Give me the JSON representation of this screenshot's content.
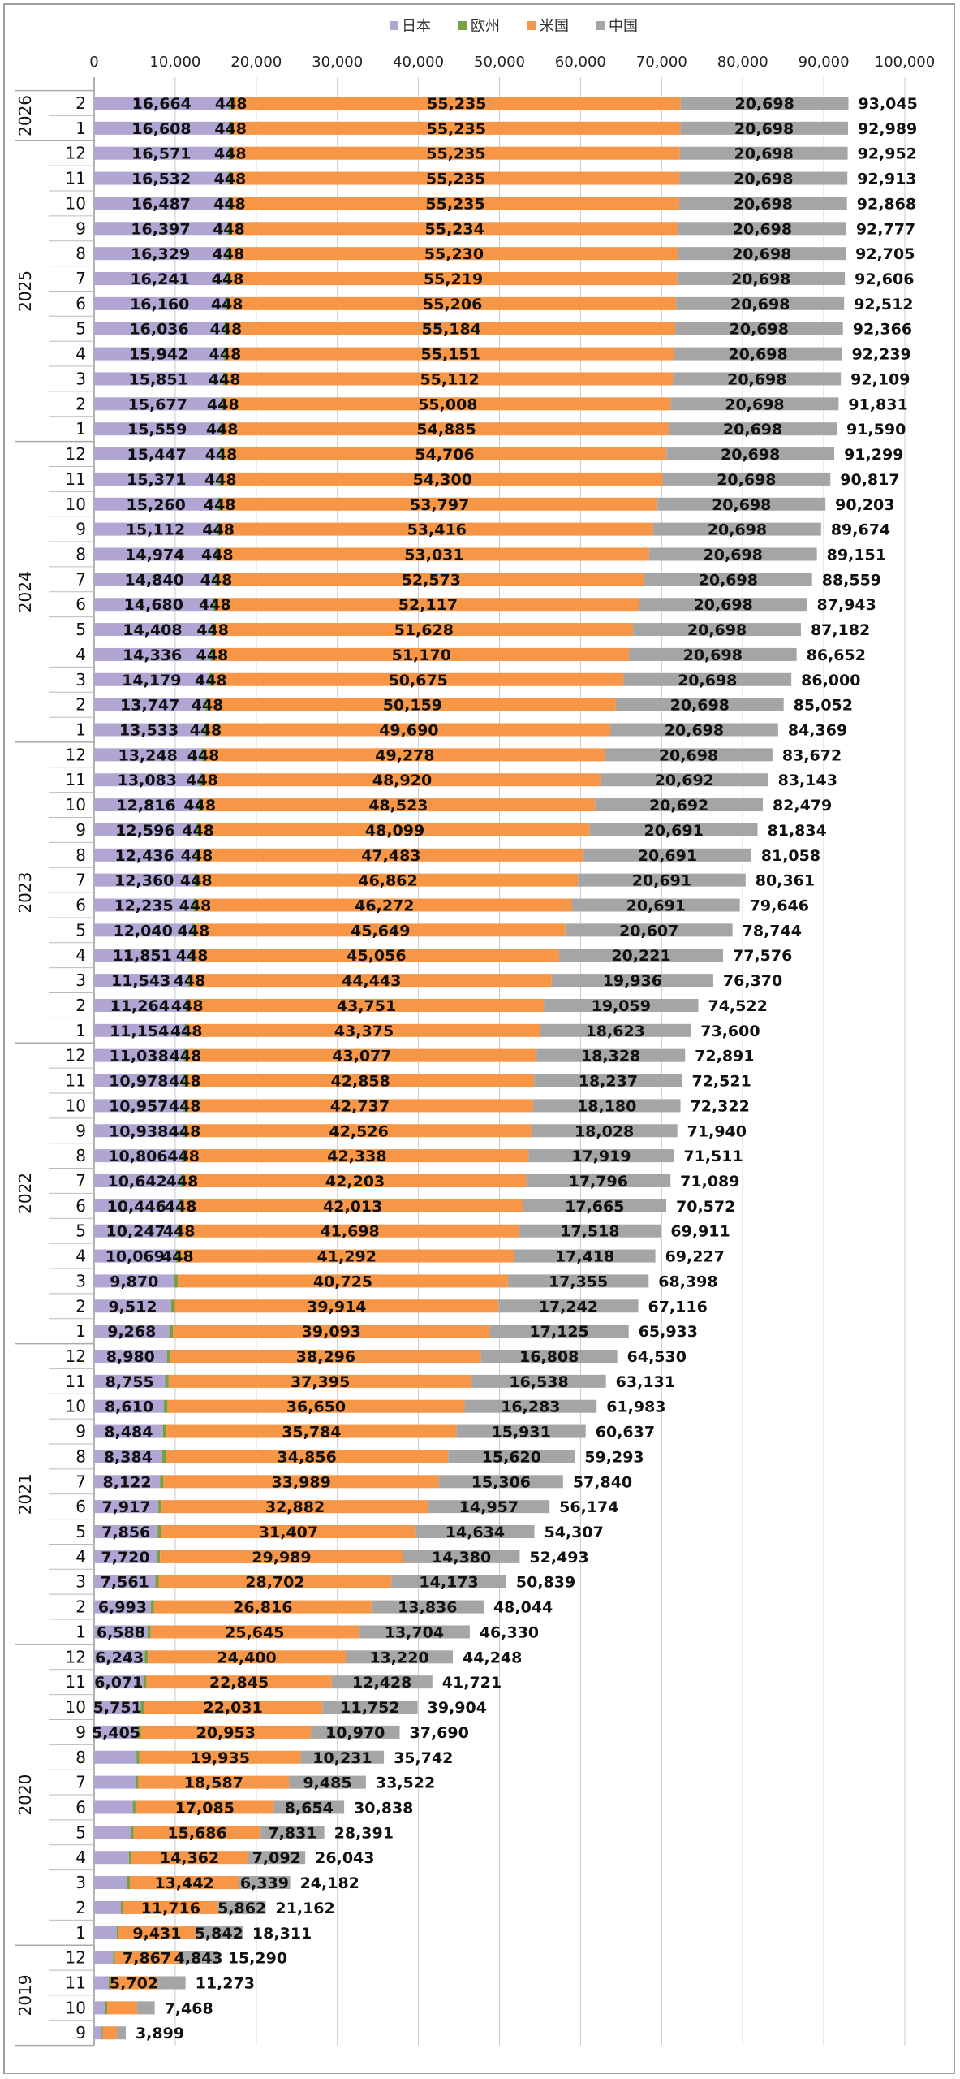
{
  "chart_data": {
    "type": "bar",
    "orientation": "horizontal",
    "stacked": true,
    "title": "",
    "xlabel": "",
    "ylabel": "",
    "xlim": [
      0,
      100000
    ],
    "xticks": [
      "0",
      "10,000",
      "20,000",
      "30,000",
      "40,000",
      "50,000",
      "60,000",
      "70,000",
      "80,000",
      "90,000",
      "100,000"
    ],
    "grid": true,
    "legend_position": "top",
    "series": [
      {
        "name": "日本",
        "color": "#b1a5d3"
      },
      {
        "name": "欧州",
        "color": "#77a043"
      },
      {
        "name": "米国",
        "color": "#f79646"
      },
      {
        "name": "中国",
        "color": "#a5a5a5"
      }
    ],
    "total_label": "total",
    "years": [
      "2026",
      "2025",
      "2024",
      "2023",
      "2022",
      "2021",
      "2020",
      "2019"
    ],
    "rows": [
      [
        "2026",
        "2",
        16664,
        448,
        55235,
        20698,
        93045
      ],
      [
        "2026",
        "1",
        16608,
        448,
        55235,
        20698,
        92989
      ],
      [
        "2025",
        "12",
        16571,
        448,
        55235,
        20698,
        92952
      ],
      [
        "2025",
        "11",
        16532,
        448,
        55235,
        20698,
        92913
      ],
      [
        "2025",
        "10",
        16487,
        448,
        55235,
        20698,
        92868
      ],
      [
        "2025",
        "9",
        16397,
        448,
        55234,
        20698,
        92777
      ],
      [
        "2025",
        "8",
        16329,
        448,
        55230,
        20698,
        92705
      ],
      [
        "2025",
        "7",
        16241,
        448,
        55219,
        20698,
        92606
      ],
      [
        "2025",
        "6",
        16160,
        448,
        55206,
        20698,
        92512
      ],
      [
        "2025",
        "5",
        16036,
        448,
        55184,
        20698,
        92366
      ],
      [
        "2025",
        "4",
        15942,
        448,
        55151,
        20698,
        92239
      ],
      [
        "2025",
        "3",
        15851,
        448,
        55112,
        20698,
        92109
      ],
      [
        "2025",
        "2",
        15677,
        448,
        55008,
        20698,
        91831
      ],
      [
        "2025",
        "1",
        15559,
        448,
        54885,
        20698,
        91590
      ],
      [
        "2024",
        "12",
        15447,
        448,
        54706,
        20698,
        91299
      ],
      [
        "2024",
        "11",
        15371,
        448,
        54300,
        20698,
        90817
      ],
      [
        "2024",
        "10",
        15260,
        448,
        53797,
        20698,
        90203
      ],
      [
        "2024",
        "9",
        15112,
        448,
        53416,
        20698,
        89674
      ],
      [
        "2024",
        "8",
        14974,
        448,
        53031,
        20698,
        89151
      ],
      [
        "2024",
        "7",
        14840,
        448,
        52573,
        20698,
        88559
      ],
      [
        "2024",
        "6",
        14680,
        448,
        52117,
        20698,
        87943
      ],
      [
        "2024",
        "5",
        14408,
        448,
        51628,
        20698,
        87182
      ],
      [
        "2024",
        "4",
        14336,
        448,
        51170,
        20698,
        86652
      ],
      [
        "2024",
        "3",
        14179,
        448,
        50675,
        20698,
        86000
      ],
      [
        "2024",
        "2",
        13747,
        448,
        50159,
        20698,
        85052
      ],
      [
        "2024",
        "1",
        13533,
        448,
        49690,
        20698,
        84369
      ],
      [
        "2023",
        "12",
        13248,
        448,
        49278,
        20698,
        83672
      ],
      [
        "2023",
        "11",
        13083,
        448,
        48920,
        20692,
        83143
      ],
      [
        "2023",
        "10",
        12816,
        448,
        48523,
        20692,
        82479
      ],
      [
        "2023",
        "9",
        12596,
        448,
        48099,
        20691,
        81834
      ],
      [
        "2023",
        "8",
        12436,
        448,
        47483,
        20691,
        81058
      ],
      [
        "2023",
        "7",
        12360,
        448,
        46862,
        20691,
        80361
      ],
      [
        "2023",
        "6",
        12235,
        448,
        46272,
        20691,
        79646
      ],
      [
        "2023",
        "5",
        12040,
        448,
        45649,
        20607,
        78744
      ],
      [
        "2023",
        "4",
        11851,
        448,
        45056,
        20221,
        77576
      ],
      [
        "2023",
        "3",
        11543,
        448,
        44443,
        19936,
        76370
      ],
      [
        "2023",
        "2",
        11264,
        448,
        43751,
        19059,
        74522
      ],
      [
        "2023",
        "1",
        11154,
        448,
        43375,
        18623,
        73600
      ],
      [
        "2022",
        "12",
        11038,
        448,
        43077,
        18328,
        72891
      ],
      [
        "2022",
        "11",
        10978,
        448,
        42858,
        18237,
        72521
      ],
      [
        "2022",
        "10",
        10957,
        448,
        42737,
        18180,
        72322
      ],
      [
        "2022",
        "9",
        10938,
        448,
        42526,
        18028,
        71940
      ],
      [
        "2022",
        "8",
        10806,
        448,
        42338,
        17919,
        71511
      ],
      [
        "2022",
        "7",
        10642,
        448,
        42203,
        17796,
        71089
      ],
      [
        "2022",
        "6",
        10446,
        448,
        42013,
        17665,
        70572
      ],
      [
        "2022",
        "5",
        10247,
        448,
        41698,
        17518,
        69911
      ],
      [
        "2022",
        "4",
        10069,
        448,
        41292,
        17418,
        69227
      ],
      [
        "2022",
        "3",
        9870,
        448,
        40725,
        17355,
        68398
      ],
      [
        "2022",
        "2",
        9512,
        448,
        39914,
        17242,
        67116
      ],
      [
        "2022",
        "1",
        9268,
        447,
        39093,
        17125,
        65933
      ],
      [
        "2021",
        "12",
        8980,
        446,
        38296,
        16808,
        64530
      ],
      [
        "2021",
        "11",
        8755,
        443,
        37395,
        16538,
        63131
      ],
      [
        "2021",
        "10",
        8610,
        440,
        36650,
        16283,
        61983
      ],
      [
        "2021",
        "9",
        8484,
        438,
        35784,
        15931,
        60637
      ],
      [
        "2021",
        "8",
        8384,
        433,
        34856,
        15620,
        59293
      ],
      [
        "2021",
        "7",
        8122,
        423,
        33989,
        15306,
        57840
      ],
      [
        "2021",
        "6",
        7917,
        418,
        32882,
        14957,
        56174
      ],
      [
        "2021",
        "5",
        7856,
        410,
        31407,
        14634,
        54307
      ],
      [
        "2021",
        "4",
        7720,
        404,
        29989,
        14380,
        52493
      ],
      [
        "2021",
        "3",
        7561,
        403,
        28702,
        14173,
        50839
      ],
      [
        "2021",
        "2",
        6993,
        399,
        26816,
        13836,
        48044
      ],
      [
        "2021",
        "1",
        6588,
        393,
        25645,
        13704,
        46330
      ],
      [
        "2020",
        "12",
        6243,
        385,
        24400,
        13220,
        44248
      ],
      [
        "2020",
        "11",
        6071,
        377,
        22845,
        12428,
        41721
      ],
      [
        "2020",
        "10",
        5751,
        370,
        22031,
        11752,
        39904
      ],
      [
        "2020",
        "9",
        5405,
        362,
        20953,
        10970,
        37690
      ],
      [
        "2020",
        "8",
        5226,
        350,
        19935,
        10231,
        35742
      ],
      [
        "2020",
        "7",
        5110,
        340,
        18587,
        9485,
        33522
      ],
      [
        "2020",
        "6",
        4770,
        329,
        17085,
        8654,
        30838
      ],
      [
        "2020",
        "5",
        4560,
        314,
        15686,
        7831,
        28391
      ],
      [
        "2020",
        "4",
        4280,
        309,
        14362,
        7092,
        26043
      ],
      [
        "2020",
        "3",
        4100,
        301,
        13442,
        6339,
        24182
      ],
      [
        "2020",
        "2",
        3300,
        284,
        11716,
        5862,
        21162
      ],
      [
        "2020",
        "1",
        2780,
        258,
        9431,
        5842,
        18311
      ],
      [
        "2019",
        "12",
        2330,
        250,
        7867,
        4843,
        15290
      ],
      [
        "2019",
        "11",
        1800,
        250,
        5702,
        3521,
        11273
      ],
      [
        "2019",
        "10",
        1400,
        200,
        3700,
        2168,
        7468
      ],
      [
        "2019",
        "9",
        950,
        100,
        1750,
        1099,
        3899
      ]
    ],
    "labels": [
      [
        "16,664",
        "448",
        "55,235",
        "20,698",
        "93,045"
      ],
      [
        "16,608",
        "448",
        "55,235",
        "20,698",
        "92,989"
      ],
      [
        "16,571",
        "448",
        "55,235",
        "20,698",
        "92,952"
      ],
      [
        "16,532",
        "448",
        "55,235",
        "20,698",
        "92,913"
      ],
      [
        "16,487",
        "448",
        "55,235",
        "20,698",
        "92,868"
      ],
      [
        "16,397",
        "448",
        "55,234",
        "20,698",
        "92,777"
      ],
      [
        "16,329",
        "448",
        "55,230",
        "20,698",
        "92,705"
      ],
      [
        "16,241",
        "448",
        "55,219",
        "20,698",
        "92,606"
      ],
      [
        "16,160",
        "448",
        "55,206",
        "20,698",
        "92,512"
      ],
      [
        "16,036",
        "448",
        "55,184",
        "20,698",
        "92,366"
      ],
      [
        "15,942",
        "448",
        "55,151",
        "20,698",
        "92,239"
      ],
      [
        "15,851",
        "448",
        "55,112",
        "20,698",
        "92,109"
      ],
      [
        "15,677",
        "448",
        "55,008",
        "20,698",
        "91,831"
      ],
      [
        "15,559",
        "448",
        "54,885",
        "20,698",
        "91,590"
      ],
      [
        "15,447",
        "448",
        "54,706",
        "20,698",
        "91,299"
      ],
      [
        "15,371",
        "448",
        "54,300",
        "20,698",
        "90,817"
      ],
      [
        "15,260",
        "448",
        "53,797",
        "20,698",
        "90,203"
      ],
      [
        "15,112",
        "448",
        "53,416",
        "20,698",
        "89,674"
      ],
      [
        "14,974",
        "448",
        "53,031",
        "20,698",
        "89,151"
      ],
      [
        "14,840",
        "448",
        "52,573",
        "20,698",
        "88,559"
      ],
      [
        "14,680",
        "448",
        "52,117",
        "20,698",
        "87,943"
      ],
      [
        "14,408",
        "448",
        "51,628",
        "20,698",
        "87,182"
      ],
      [
        "14,336",
        "448",
        "51,170",
        "20,698",
        "86,652"
      ],
      [
        "14,179",
        "448",
        "50,675",
        "20,698",
        "86,000"
      ],
      [
        "13,747",
        "448",
        "50,159",
        "20,698",
        "85,052"
      ],
      [
        "13,533",
        "448",
        "49,690",
        "20,698",
        "84,369"
      ],
      [
        "13,248",
        "448",
        "49,278",
        "20,698",
        "83,672"
      ],
      [
        "13,083",
        "448",
        "48,920",
        "20,692",
        "83,143"
      ],
      [
        "12,816",
        "448",
        "48,523",
        "20,692",
        "82,479"
      ],
      [
        "12,596",
        "448",
        "48,099",
        "20,691",
        "81,834"
      ],
      [
        "12,436",
        "448",
        "47,483",
        "20,691",
        "81,058"
      ],
      [
        "12,360",
        "448",
        "46,862",
        "20,691",
        "80,361"
      ],
      [
        "12,235",
        "448",
        "46,272",
        "20,691",
        "79,646"
      ],
      [
        "12,040",
        "448",
        "45,649",
        "20,607",
        "78,744"
      ],
      [
        "11,851",
        "448",
        "45,056",
        "20,221",
        "77,576"
      ],
      [
        "11,543",
        "448",
        "44,443",
        "19,936",
        "76,370"
      ],
      [
        "11,264",
        "448",
        "43,751",
        "19,059",
        "74,522"
      ],
      [
        "11,154",
        "448",
        "43,375",
        "18,623",
        "73,600"
      ],
      [
        "11,038",
        "448",
        "43,077",
        "18,328",
        "72,891"
      ],
      [
        "10,978",
        "448",
        "42,858",
        "18,237",
        "72,521"
      ],
      [
        "10,957",
        "448",
        "42,737",
        "18,180",
        "72,322"
      ],
      [
        "10,938",
        "448",
        "42,526",
        "18,028",
        "71,940"
      ],
      [
        "10,806",
        "448",
        "42,338",
        "17,919",
        "71,511"
      ],
      [
        "10,642",
        "448",
        "42,203",
        "17,796",
        "71,089"
      ],
      [
        "10,446",
        "448",
        "42,013",
        "17,665",
        "70,572"
      ],
      [
        "10,247",
        "448",
        "41,698",
        "17,518",
        "69,911"
      ],
      [
        "10,069",
        "448",
        "41,292",
        "17,418",
        "69,227"
      ],
      [
        "9,870",
        null,
        "40,725",
        "17,355",
        "68,398"
      ],
      [
        "9,512",
        null,
        "39,914",
        "17,242",
        "67,116"
      ],
      [
        "9,268",
        null,
        "39,093",
        "17,125",
        "65,933"
      ],
      [
        "8,980",
        null,
        "38,296",
        "16,808",
        "64,530"
      ],
      [
        "8,755",
        null,
        "37,395",
        "16,538",
        "63,131"
      ],
      [
        "8,610",
        null,
        "36,650",
        "16,283",
        "61,983"
      ],
      [
        "8,484",
        null,
        "35,784",
        "15,931",
        "60,637"
      ],
      [
        "8,384",
        null,
        "34,856",
        "15,620",
        "59,293"
      ],
      [
        "8,122",
        null,
        "33,989",
        "15,306",
        "57,840"
      ],
      [
        "7,917",
        null,
        "32,882",
        "14,957",
        "56,174"
      ],
      [
        "7,856",
        null,
        "31,407",
        "14,634",
        "54,307"
      ],
      [
        "7,720",
        null,
        "29,989",
        "14,380",
        "52,493"
      ],
      [
        "7,561",
        null,
        "28,702",
        "14,173",
        "50,839"
      ],
      [
        "6,993",
        null,
        "26,816",
        "13,836",
        "48,044"
      ],
      [
        "6,588",
        null,
        "25,645",
        "13,704",
        "46,330"
      ],
      [
        "6,243",
        null,
        "24,400",
        "13,220",
        "44,248"
      ],
      [
        "6,071",
        null,
        "22,845",
        "12,428",
        "41,721"
      ],
      [
        "5,751",
        null,
        "22,031",
        "11,752",
        "39,904"
      ],
      [
        "5,405",
        null,
        "20,953",
        "10,970",
        "37,690"
      ],
      [
        null,
        null,
        "19,935",
        "10,231",
        "35,742"
      ],
      [
        null,
        null,
        "18,587",
        "9,485",
        "33,522"
      ],
      [
        null,
        null,
        "17,085",
        "8,654",
        "30,838"
      ],
      [
        null,
        null,
        "15,686",
        "7,831",
        "28,391"
      ],
      [
        null,
        null,
        "14,362",
        "7,092",
        "26,043"
      ],
      [
        null,
        null,
        "13,442",
        "6,339",
        "24,182"
      ],
      [
        null,
        null,
        "11,716",
        "5,862",
        "21,162"
      ],
      [
        null,
        null,
        "9,431",
        "5,842",
        "18,311"
      ],
      [
        null,
        null,
        "7,867",
        "4,843",
        "15,290"
      ],
      [
        null,
        null,
        "5,702",
        null,
        "11,273"
      ],
      [
        null,
        null,
        null,
        null,
        "7,468"
      ],
      [
        null,
        null,
        null,
        null,
        "3,899"
      ]
    ]
  }
}
